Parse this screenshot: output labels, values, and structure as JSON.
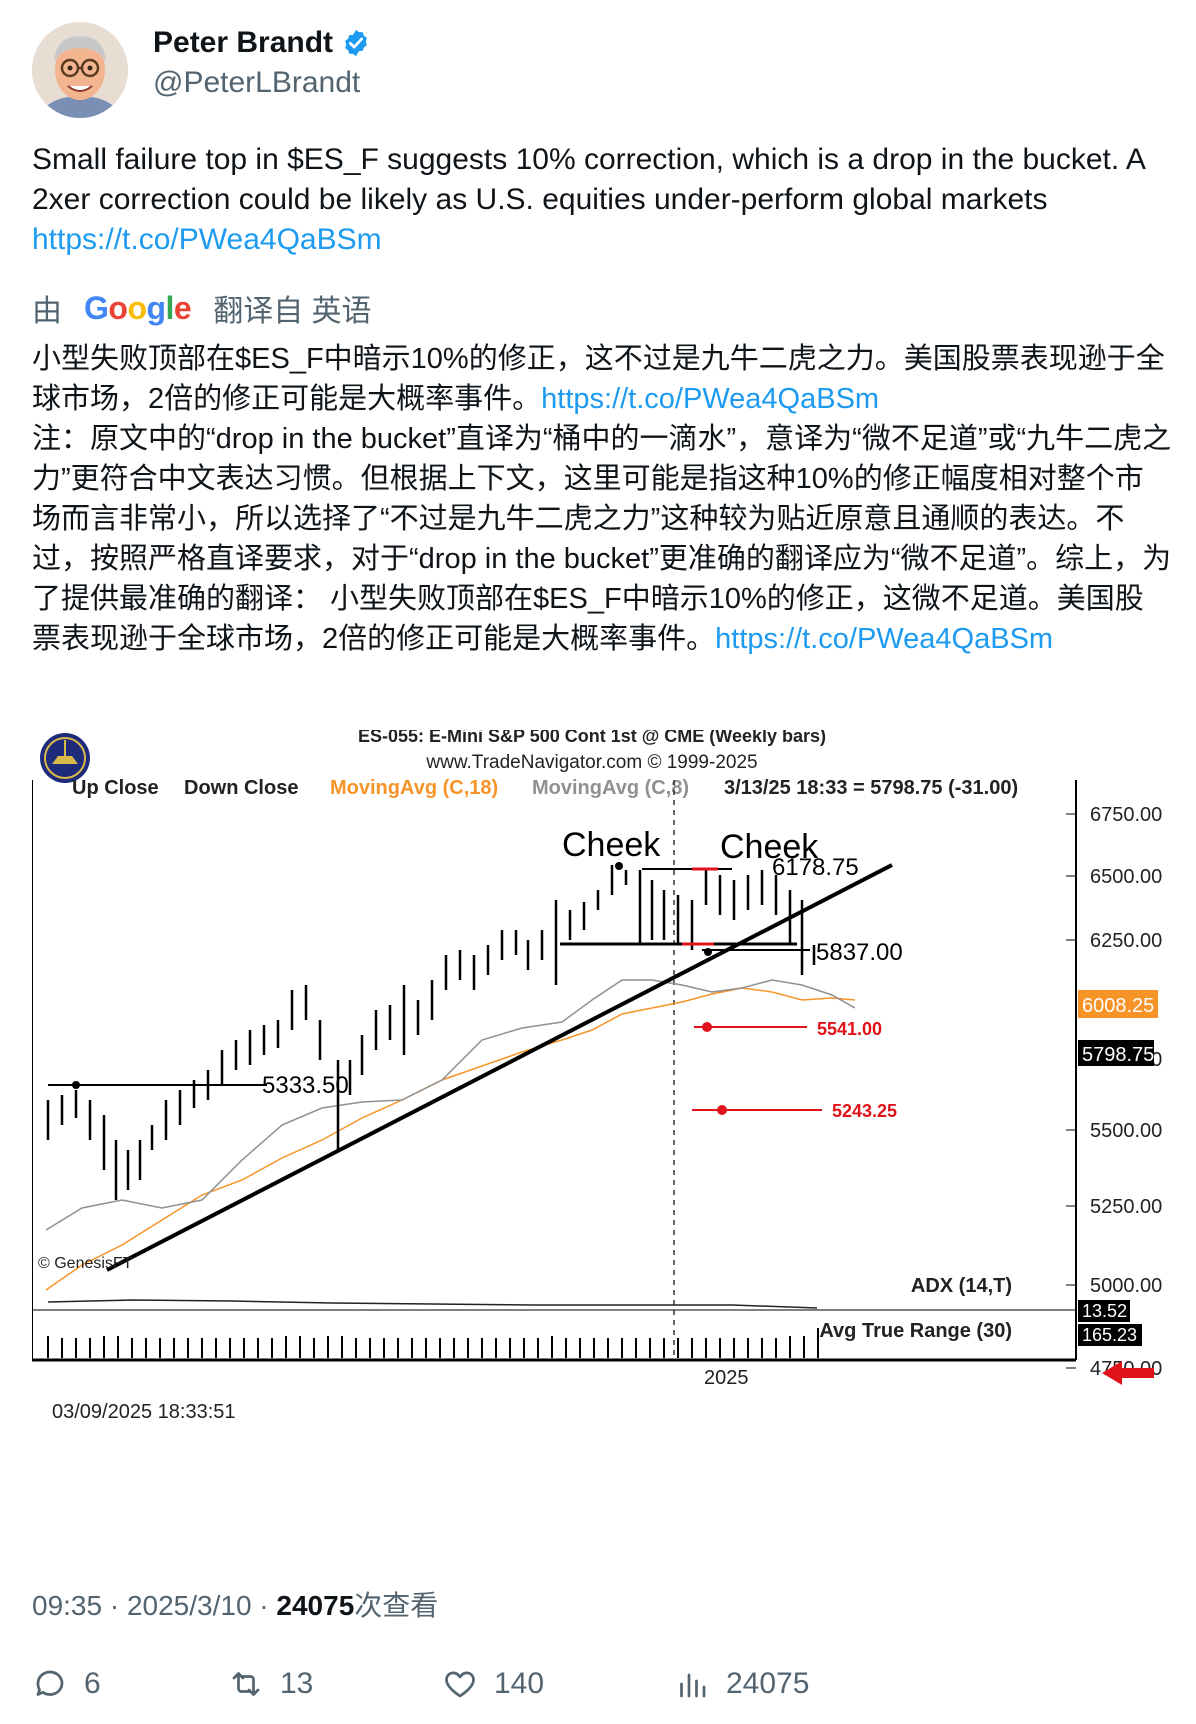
{
  "author": {
    "name": "Peter Brandt",
    "handle": "@PeterLBrandt"
  },
  "tweet": {
    "text": "Small failure top in $ES_F suggests 10% correction, which is a drop in the bucket. A 2xer correction could be likely as U.S. equities under-perform global markets ",
    "link": "https://t.co/PWea4QaBSm"
  },
  "translation": {
    "by": "由",
    "google": "Google",
    "from": "翻译自 英语",
    "para1": "小型失败顶部在$ES_F中暗示10%的修正，这不过是九牛二虎之力。美国股票表现逊于全球市场，2倍的修正可能是大概率事件。",
    "link1": "https://t.co/PWea4QaBSm",
    "para2": "注：原文中的“drop in the bucket”直译为“桶中的一滴水”，意译为“微不足道”或“九牛二虎之力”更符合中文表达习惯。但根据上下文，这里可能是指这种10%的修正幅度相对整个市场而言非常小，所以选择了“不过是九牛二虎之力”这种较为贴近原意且通顺的表达。不过，按照严格直译要求，对于“drop in the bucket”更准确的翻译应为“微不足道”。综上，为了提供最准确的翻译： 小型失败顶部在$ES_F中暗示10%的修正，这微不足道。美国股票表现逊于全球市场，2倍的修正可能是大概率事件。",
    "link2": "https://t.co/PWea4QaBSm"
  },
  "chart": {
    "title": "ES-055:  E-Mini S&P 500 Cont 1st @ CME  (Weekly bars)",
    "source": "www.TradeNavigator.com © 1999-2025",
    "legend_up": "Up Close",
    "legend_down": "Down Close",
    "legend_ma18": "MovingAvg (C,18)",
    "legend_ma8": "MovingAvg (C,8)",
    "legend_quote": "3/13/25 18:33 = 5798.75 (-31.00)",
    "price_ticks": [
      "6750.00",
      "6500.00",
      "6250.00",
      "6008.25",
      "5798.75",
      "5750.00",
      "5500.00",
      "5250.00",
      "5000.00",
      "4750.00"
    ],
    "label_cheek1": "Cheek",
    "label_cheek2": "Cheek",
    "label_high": "6178.75",
    "label_neck": "5837.00",
    "label_target1": "5541.00",
    "label_target2": "5243.25",
    "label_support": "5333.50",
    "watermark": "© GenesisFT",
    "adx_label": "ADX (14,T)",
    "adx_value": "13.52",
    "atr_label": "Avg True Range (30)",
    "atr_value": "165.23",
    "year_label": "2025",
    "timestamp": "03/09/2025 18:33:51",
    "colors": {
      "ma18": "#f79427",
      "ma8": "#909090",
      "target": "#e0121a",
      "price_box": "#f79427"
    }
  },
  "meta": {
    "time": "09:35 · 2025/3/10 · ",
    "views": "24075",
    "views_suffix": "次查看"
  },
  "actions": {
    "replies": "6",
    "reposts": "13",
    "likes": "140",
    "views": "24075"
  }
}
